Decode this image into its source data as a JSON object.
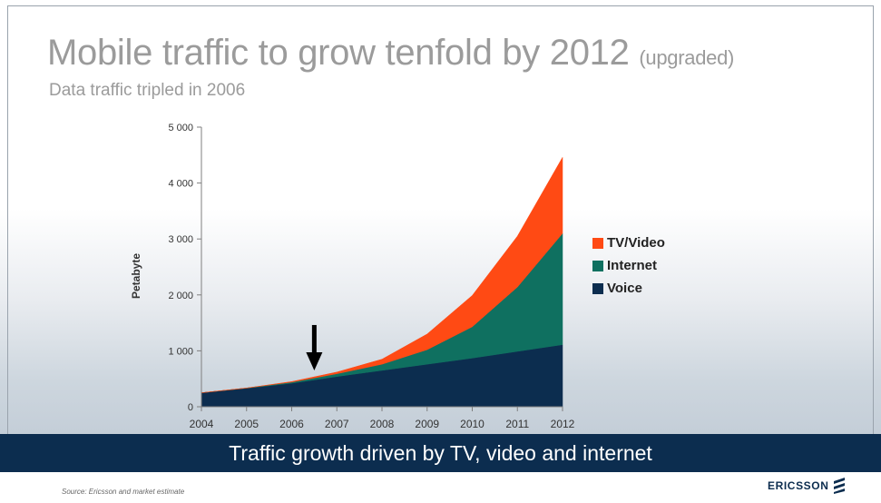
{
  "slide": {
    "title": "Mobile traffic to grow tenfold by 2012",
    "title_suffix": "(upgraded)",
    "subtitle": "Data traffic tripled in 2006",
    "banner": "Traffic growth driven by TV, video and internet",
    "source": "Source: Ericsson and market estimate",
    "logo": "ERICSSON",
    "logo_icon": "ericsson-stripes-icon",
    "annotation_icon": "arrow-down-icon"
  },
  "chart_data": {
    "type": "area",
    "stacked": true,
    "title": "Mobile traffic to grow tenfold by 2012 (upgraded)",
    "subtitle": "Data traffic tripled in 2006",
    "xlabel": "",
    "ylabel": "Petabyte",
    "categories": [
      "2004",
      "2005",
      "2006",
      "2007",
      "2008",
      "2009",
      "2010",
      "2011",
      "2012"
    ],
    "yticks": [
      0,
      1000,
      2000,
      3000,
      4000,
      5000
    ],
    "ytick_labels": [
      "0",
      "1 000",
      "2 000",
      "3 000",
      "4 000",
      "5 000"
    ],
    "ylim": [
      0,
      5000
    ],
    "legend_position": "right",
    "grid": false,
    "annotation": {
      "type": "arrow-down",
      "x": 2006.5,
      "y": 650
    },
    "series": [
      {
        "name": "Voice",
        "color": "#0c2d4f",
        "values": [
          250,
          330,
          420,
          540,
          650,
          760,
          870,
          990,
          1110
        ]
      },
      {
        "name": "Internet",
        "color": "#0f7060",
        "values": [
          0,
          5,
          20,
          50,
          110,
          260,
          560,
          1150,
          1990
        ]
      },
      {
        "name": "TV/Video",
        "color": "#ff4a14",
        "values": [
          0,
          0,
          10,
          30,
          90,
          280,
          560,
          910,
          1360
        ]
      }
    ]
  }
}
